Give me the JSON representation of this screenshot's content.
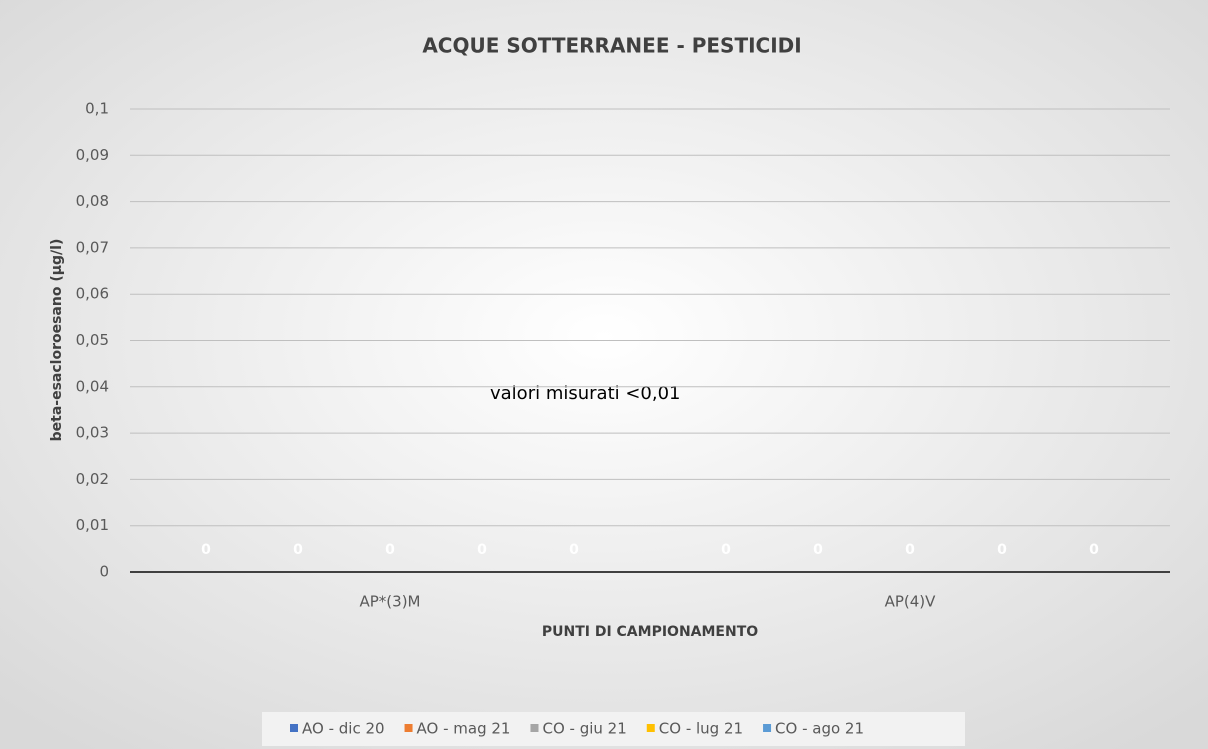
{
  "chart_data": {
    "type": "bar",
    "title": "ACQUE SOTTERRANEE - PESTICIDI",
    "y_label": "beta-esacloroesano (µg/l)",
    "x_label": "PUNTI DI CAMPIONAMENTO",
    "annotation": "valori misurati   <0,01",
    "categories": [
      "AP*(3)M",
      "AP(4)V"
    ],
    "series": [
      {
        "name": "AO - dic 20",
        "color": "#4472c4",
        "values": [
          0,
          0
        ]
      },
      {
        "name": "AO - mag 21",
        "color": "#ed7d31",
        "values": [
          0,
          0
        ]
      },
      {
        "name": "CO - giu 21",
        "color": "#a5a5a5",
        "values": [
          0,
          0
        ]
      },
      {
        "name": "CO - lug 21",
        "color": "#ffc000",
        "values": [
          0,
          0
        ]
      },
      {
        "name": "CO - ago 21",
        "color": "#5b9bd5",
        "values": [
          0,
          0
        ]
      }
    ],
    "ylim": [
      0,
      0.1
    ],
    "yticks": [
      0,
      {
        "value": 0.01,
        "label": "0,01"
      },
      {
        "value": 0.02,
        "label": "0,02"
      },
      {
        "value": 0.03,
        "label": "0,03"
      },
      {
        "value": 0.04,
        "label": "0,04"
      },
      {
        "value": 0.05,
        "label": "0,05"
      },
      {
        "value": 0.06,
        "label": "0,06"
      },
      {
        "value": 0.07,
        "label": "0,07"
      },
      {
        "value": 0.08,
        "label": "0,08"
      },
      {
        "value": 0.09,
        "label": "0,09"
      },
      {
        "value": 0.1,
        "label": "0,1"
      }
    ],
    "grid": true,
    "legend": "bottom"
  }
}
